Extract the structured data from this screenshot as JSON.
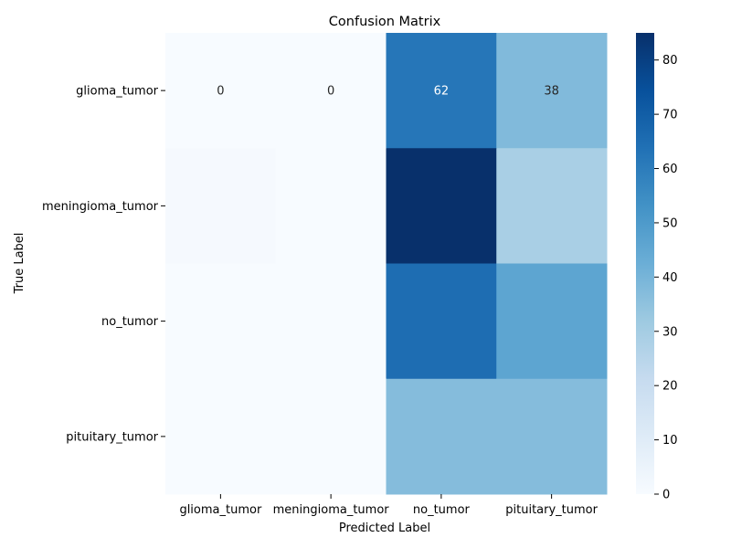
{
  "chart_data": {
    "type": "heatmap",
    "title": "Confusion Matrix",
    "xlabel": "Predicted Label",
    "ylabel": "True Label",
    "x_categories": [
      "glioma_tumor",
      "meningioma_tumor",
      "no_tumor",
      "pituitary_tumor"
    ],
    "y_categories": [
      "glioma_tumor",
      "meningioma_tumor",
      "no_tumor",
      "pituitary_tumor"
    ],
    "values": [
      [
        0,
        0,
        62,
        38
      ],
      [
        1,
        0,
        85,
        29
      ],
      [
        0,
        0,
        65,
        46
      ],
      [
        0,
        0,
        37,
        37
      ]
    ],
    "annotations": [
      [
        "0",
        "0",
        "62",
        "38"
      ],
      [
        "",
        "",
        "",
        ""
      ],
      [
        "",
        "",
        "",
        ""
      ],
      [
        "",
        "",
        "",
        ""
      ]
    ],
    "colormap": "Blues",
    "colormap_stops": [
      "#f7fbff",
      "#deebf7",
      "#c6dbef",
      "#9ecae1",
      "#6baed6",
      "#4292c6",
      "#2171b5",
      "#08519c",
      "#08306b"
    ],
    "vmin": 0,
    "vmax": 85,
    "colorbar_ticks": [
      0,
      10,
      20,
      30,
      40,
      50,
      60,
      70,
      80
    ],
    "grid": false,
    "colorbar_position": "right"
  }
}
